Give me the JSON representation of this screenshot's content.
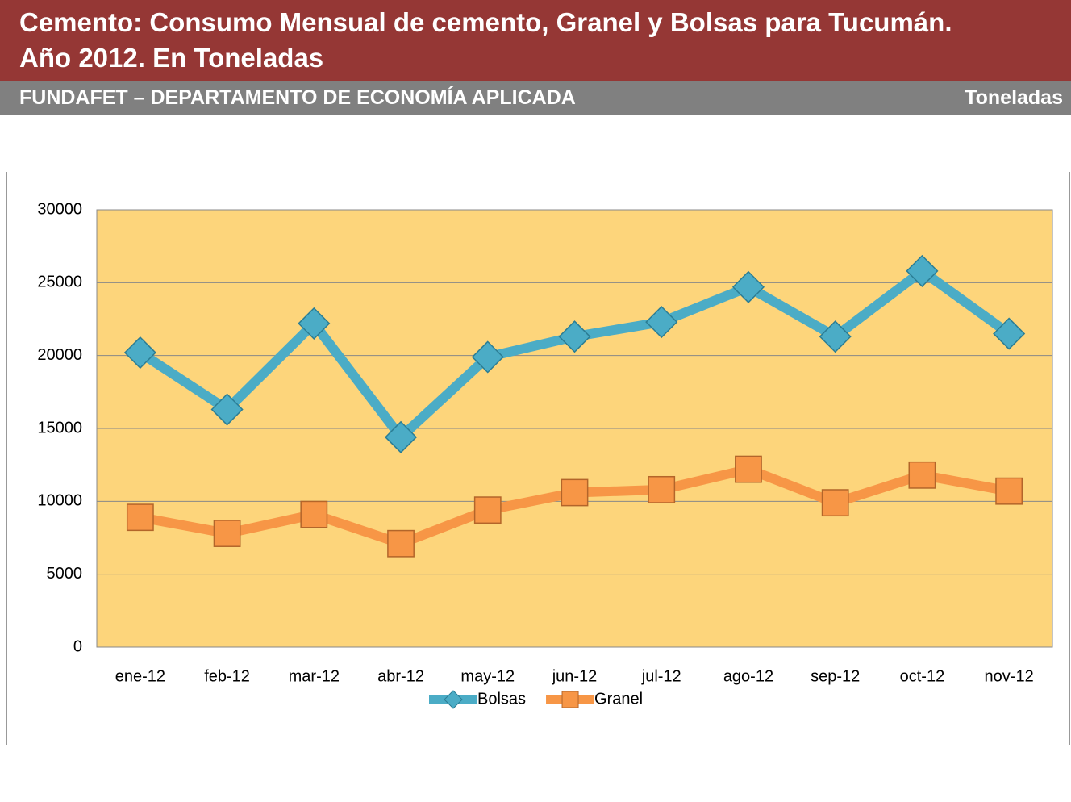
{
  "header": {
    "title": "Cemento: Consumo Mensual de cemento, Granel y Bolsas para Tucumán. Año 2012. En Toneladas",
    "subtitle": "FUNDAFET – DEPARTAMENTO DE ECONOMÍA APLICADA",
    "unit": "Toneladas"
  },
  "chart_data": {
    "type": "line",
    "categories": [
      "ene-12",
      "feb-12",
      "mar-12",
      "abr-12",
      "may-12",
      "jun-12",
      "jul-12",
      "ago-12",
      "sep-12",
      "oct-12",
      "nov-12"
    ],
    "series": [
      {
        "name": "Bolsas",
        "color": "#4bacc6",
        "marker": "diamond",
        "values": [
          20200,
          16300,
          22200,
          14400,
          19900,
          21300,
          22300,
          24700,
          21300,
          25800,
          21500
        ]
      },
      {
        "name": "Granel",
        "color": "#f79646",
        "marker": "square",
        "values": [
          8900,
          7800,
          9100,
          7100,
          9400,
          10600,
          10800,
          12200,
          9900,
          11800,
          10700
        ]
      }
    ],
    "ylim": [
      0,
      30000
    ],
    "yticks": [
      0,
      5000,
      10000,
      15000,
      20000,
      25000,
      30000
    ],
    "grid": true,
    "legend": "bottom",
    "plot_background": "#fdd57b"
  }
}
